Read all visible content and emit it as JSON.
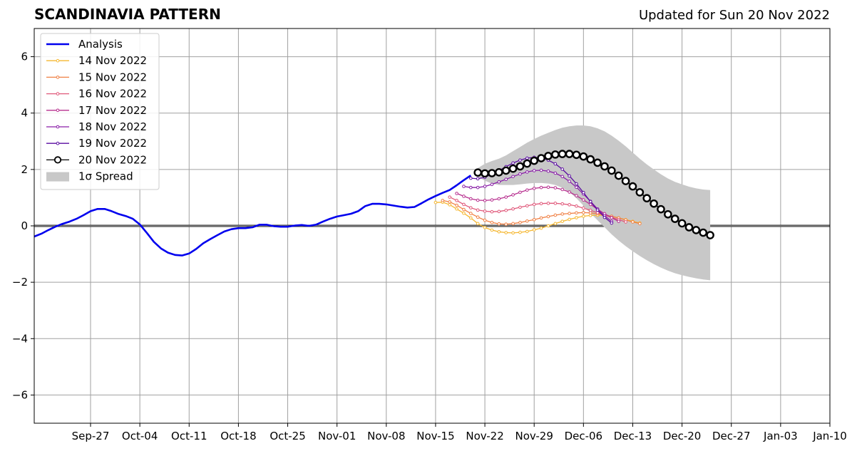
{
  "chart_data": {
    "type": "line",
    "title": "SCANDINAVIA PATTERN",
    "subtitle": "Updated for Sun 20 Nov 2022",
    "xlabel": "",
    "ylabel": "",
    "xlim": [
      "2022-09-19",
      "2023-01-10"
    ],
    "ylim": [
      -7,
      7
    ],
    "grid": true,
    "legend_position": "top-left",
    "x_tick_labels": [
      "Sep-27",
      "Oct-04",
      "Oct-11",
      "Oct-18",
      "Oct-25",
      "Nov-01",
      "Nov-08",
      "Nov-15",
      "Nov-22",
      "Nov-29",
      "Dec-06",
      "Dec-13",
      "Dec-20",
      "Dec-27",
      "Jan-03",
      "Jan-10"
    ],
    "x_tick_dates": [
      "2022-09-27",
      "2022-10-04",
      "2022-10-11",
      "2022-10-18",
      "2022-10-25",
      "2022-11-01",
      "2022-11-08",
      "2022-11-15",
      "2022-11-22",
      "2022-11-29",
      "2022-12-06",
      "2022-12-13",
      "2022-12-20",
      "2022-12-27",
      "2023-01-03",
      "2023-01-10"
    ],
    "y_ticks": [
      -6,
      -4,
      -2,
      0,
      2,
      4,
      6
    ],
    "y_tick_labels": [
      "−6",
      "−4",
      "−2",
      "0",
      "2",
      "4",
      "6"
    ],
    "analysis": {
      "name": "Analysis",
      "color": "#0000ee",
      "points": [
        [
          "2022-09-19",
          -0.38
        ],
        [
          "2022-09-20",
          -0.28
        ],
        [
          "2022-09-21",
          -0.15
        ],
        [
          "2022-09-22",
          -0.03
        ],
        [
          "2022-09-23",
          0.07
        ],
        [
          "2022-09-24",
          0.15
        ],
        [
          "2022-09-25",
          0.25
        ],
        [
          "2022-09-26",
          0.38
        ],
        [
          "2022-09-27",
          0.52
        ],
        [
          "2022-09-28",
          0.6
        ],
        [
          "2022-09-29",
          0.6
        ],
        [
          "2022-09-30",
          0.52
        ],
        [
          "2022-10-01",
          0.42
        ],
        [
          "2022-10-02",
          0.35
        ],
        [
          "2022-10-03",
          0.25
        ],
        [
          "2022-10-04",
          0.05
        ],
        [
          "2022-10-05",
          -0.25
        ],
        [
          "2022-10-06",
          -0.57
        ],
        [
          "2022-10-07",
          -0.8
        ],
        [
          "2022-10-08",
          -0.95
        ],
        [
          "2022-10-09",
          -1.03
        ],
        [
          "2022-10-10",
          -1.05
        ],
        [
          "2022-10-11",
          -0.98
        ],
        [
          "2022-10-12",
          -0.82
        ],
        [
          "2022-10-13",
          -0.62
        ],
        [
          "2022-10-14",
          -0.47
        ],
        [
          "2022-10-15",
          -0.33
        ],
        [
          "2022-10-16",
          -0.2
        ],
        [
          "2022-10-17",
          -0.12
        ],
        [
          "2022-10-18",
          -0.08
        ],
        [
          "2022-10-19",
          -0.08
        ],
        [
          "2022-10-20",
          -0.05
        ],
        [
          "2022-10-21",
          0.04
        ],
        [
          "2022-10-22",
          0.04
        ],
        [
          "2022-10-23",
          -0.01
        ],
        [
          "2022-10-24",
          -0.03
        ],
        [
          "2022-10-25",
          -0.03
        ],
        [
          "2022-10-26",
          0.01
        ],
        [
          "2022-10-27",
          0.03
        ],
        [
          "2022-10-28",
          0.0
        ],
        [
          "2022-10-29",
          0.04
        ],
        [
          "2022-10-30",
          0.15
        ],
        [
          "2022-10-31",
          0.25
        ],
        [
          "2022-11-01",
          0.33
        ],
        [
          "2022-11-02",
          0.38
        ],
        [
          "2022-11-03",
          0.43
        ],
        [
          "2022-11-04",
          0.52
        ],
        [
          "2022-11-05",
          0.7
        ],
        [
          "2022-11-06",
          0.78
        ],
        [
          "2022-11-07",
          0.78
        ],
        [
          "2022-11-08",
          0.76
        ],
        [
          "2022-11-09",
          0.72
        ],
        [
          "2022-11-10",
          0.68
        ],
        [
          "2022-11-11",
          0.65
        ],
        [
          "2022-11-12",
          0.67
        ],
        [
          "2022-11-13",
          0.8
        ],
        [
          "2022-11-14",
          0.94
        ],
        [
          "2022-11-15",
          1.06
        ],
        [
          "2022-11-16",
          1.17
        ],
        [
          "2022-11-17",
          1.27
        ],
        [
          "2022-11-18",
          1.44
        ],
        [
          "2022-11-19",
          1.62
        ],
        [
          "2022-11-20",
          1.79
        ]
      ]
    },
    "forecasts": [
      {
        "name": "14 Nov 2022",
        "color": "#f5b731",
        "start": "2022-11-15",
        "values": [
          0.83,
          0.84,
          0.75,
          0.6,
          0.45,
          0.28,
          0.08,
          -0.06,
          -0.15,
          -0.21,
          -0.24,
          -0.25,
          -0.23,
          -0.2,
          -0.14,
          -0.08,
          0.0,
          0.08,
          0.16,
          0.23,
          0.29,
          0.34,
          0.37,
          0.38,
          0.37,
          0.33,
          0.28,
          0.22,
          0.16,
          0.1
        ]
      },
      {
        "name": "15 Nov 2022",
        "color": "#f08044",
        "start": "2022-11-16",
        "values": [
          0.9,
          0.85,
          0.73,
          0.58,
          0.44,
          0.31,
          0.2,
          0.12,
          0.07,
          0.06,
          0.08,
          0.12,
          0.17,
          0.22,
          0.28,
          0.33,
          0.38,
          0.42,
          0.44,
          0.46,
          0.47,
          0.46,
          0.43,
          0.39,
          0.34,
          0.28,
          0.21,
          0.14,
          0.08
        ]
      },
      {
        "name": "16 Nov 2022",
        "color": "#e0587a",
        "start": "2022-11-17",
        "values": [
          1.02,
          0.9,
          0.76,
          0.64,
          0.56,
          0.52,
          0.5,
          0.51,
          0.55,
          0.6,
          0.66,
          0.71,
          0.76,
          0.79,
          0.8,
          0.8,
          0.78,
          0.75,
          0.7,
          0.63,
          0.55,
          0.47,
          0.38,
          0.3,
          0.22,
          0.14
        ]
      },
      {
        "name": "17 Nov 2022",
        "color": "#b72f8f",
        "start": "2022-11-18",
        "values": [
          1.15,
          1.05,
          0.96,
          0.91,
          0.9,
          0.92,
          0.96,
          1.02,
          1.1,
          1.19,
          1.27,
          1.33,
          1.36,
          1.37,
          1.35,
          1.29,
          1.2,
          1.07,
          0.92,
          0.76,
          0.59,
          0.43,
          0.29,
          0.16
        ]
      },
      {
        "name": "18 Nov 2022",
        "color": "#8a1fa8",
        "start": "2022-11-19",
        "values": [
          1.4,
          1.36,
          1.36,
          1.4,
          1.47,
          1.56,
          1.65,
          1.75,
          1.84,
          1.91,
          1.96,
          1.97,
          1.94,
          1.87,
          1.75,
          1.58,
          1.37,
          1.13,
          0.87,
          0.6,
          0.36,
          0.16
        ]
      },
      {
        "name": "19 Nov 2022",
        "color": "#5a0ca0",
        "start": "2022-11-20",
        "values": [
          1.69,
          1.67,
          1.72,
          1.83,
          1.96,
          2.1,
          2.23,
          2.33,
          2.4,
          2.43,
          2.41,
          2.33,
          2.2,
          2.01,
          1.77,
          1.49,
          1.18,
          0.86,
          0.56,
          0.3,
          0.1
        ]
      },
      {
        "name": "20 Nov 2022",
        "color": "#000000",
        "start": "2022-11-21",
        "values": [
          1.89,
          1.86,
          1.87,
          1.9,
          1.96,
          2.03,
          2.11,
          2.21,
          2.31,
          2.4,
          2.48,
          2.53,
          2.55,
          2.55,
          2.52,
          2.46,
          2.36,
          2.24,
          2.11,
          1.96,
          1.78,
          1.59,
          1.4,
          1.19,
          0.98,
          0.79,
          0.59,
          0.41,
          0.25,
          0.09,
          -0.05,
          -0.15,
          -0.24,
          -0.33
        ]
      }
    ],
    "spread": {
      "name": "1σ Spread",
      "color": "#c8c8c8",
      "start": "2022-11-21",
      "upper": [
        2.05,
        2.2,
        2.3,
        2.38,
        2.5,
        2.65,
        2.8,
        2.95,
        3.08,
        3.2,
        3.3,
        3.4,
        3.48,
        3.53,
        3.56,
        3.56,
        3.53,
        3.46,
        3.35,
        3.2,
        3.02,
        2.82,
        2.6,
        2.38,
        2.18,
        2.0,
        1.83,
        1.68,
        1.56,
        1.47,
        1.39,
        1.33,
        1.29,
        1.27
      ],
      "lower": [
        1.75,
        1.6,
        1.5,
        1.45,
        1.45,
        1.45,
        1.47,
        1.5,
        1.52,
        1.52,
        1.5,
        1.45,
        1.35,
        1.2,
        0.98,
        0.72,
        0.45,
        0.2,
        -0.05,
        -0.3,
        -0.52,
        -0.72,
        -0.9,
        -1.07,
        -1.22,
        -1.36,
        -1.48,
        -1.59,
        -1.68,
        -1.75,
        -1.81,
        -1.86,
        -1.9,
        -1.93
      ]
    }
  }
}
